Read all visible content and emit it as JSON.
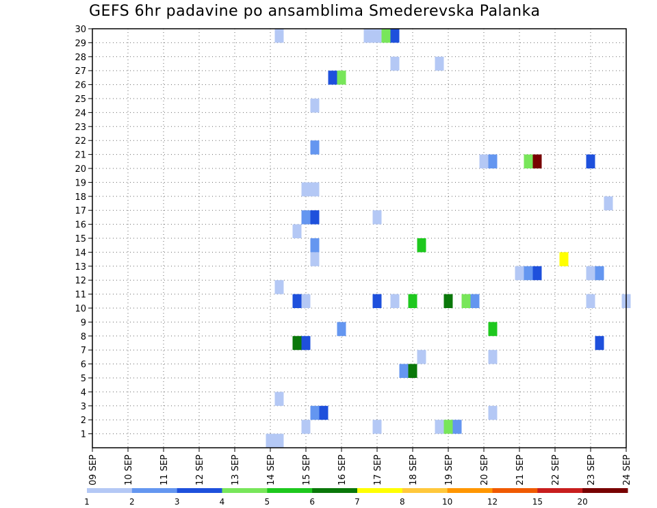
{
  "chart_data": {
    "type": "heatmap",
    "title": "GEFS 6hr padavine po ansamblima Smederevska Palanka",
    "xlabel": "",
    "ylabel": "",
    "x_ticks": [
      "09 SEP",
      "10 SEP",
      "11 SEP",
      "12 SEP",
      "13 SEP",
      "14 SEP",
      "15 SEP",
      "16 SEP",
      "17 SEP",
      "18 SEP",
      "19 SEP",
      "20 SEP",
      "21 SEP",
      "22 SEP",
      "23 SEP",
      "24 SEP"
    ],
    "y_ticks": [
      1,
      2,
      3,
      4,
      5,
      6,
      7,
      8,
      9,
      10,
      11,
      12,
      13,
      14,
      15,
      16,
      17,
      18,
      19,
      20,
      21,
      22,
      23,
      24,
      25,
      26,
      27,
      28,
      29,
      30
    ],
    "x_unit": "6-hour steps from 09 SEP 00",
    "xlim": [
      0,
      60
    ],
    "ylim": [
      0,
      30
    ],
    "grid": true,
    "legend": {
      "placement": "bottom",
      "labels": [
        "1",
        "2",
        "3",
        "4",
        "5",
        "6",
        "7",
        "8",
        "10",
        "12",
        "15",
        "20"
      ],
      "colors": [
        "#b4c8f5",
        "#6496f0",
        "#1e50dc",
        "#78e65a",
        "#1ec81e",
        "#0a780a",
        "#ffff00",
        "#ffc83c",
        "#ff9600",
        "#f05a00",
        "#c81e1e",
        "#780000"
      ]
    },
    "points": [
      {
        "x": 20,
        "y": 0,
        "c": "#b4c8f5"
      },
      {
        "x": 21,
        "y": 0,
        "c": "#b4c8f5"
      },
      {
        "x": 24,
        "y": 1,
        "c": "#b4c8f5"
      },
      {
        "x": 32,
        "y": 1,
        "c": "#b4c8f5"
      },
      {
        "x": 39,
        "y": 1,
        "c": "#b4c8f5"
      },
      {
        "x": 40,
        "y": 1,
        "c": "#78e65a"
      },
      {
        "x": 41,
        "y": 1,
        "c": "#6496f0"
      },
      {
        "x": 25,
        "y": 2,
        "c": "#6496f0"
      },
      {
        "x": 26,
        "y": 2,
        "c": "#1e50dc"
      },
      {
        "x": 45,
        "y": 2,
        "c": "#b4c8f5"
      },
      {
        "x": 21,
        "y": 3,
        "c": "#b4c8f5"
      },
      {
        "x": 35,
        "y": 5,
        "c": "#6496f0"
      },
      {
        "x": 36,
        "y": 5,
        "c": "#0a780a"
      },
      {
        "x": 37,
        "y": 6,
        "c": "#b4c8f5"
      },
      {
        "x": 45,
        "y": 6,
        "c": "#b4c8f5"
      },
      {
        "x": 23,
        "y": 7,
        "c": "#0a780a"
      },
      {
        "x": 24,
        "y": 7,
        "c": "#1e50dc"
      },
      {
        "x": 57,
        "y": 7,
        "c": "#1e50dc"
      },
      {
        "x": 28,
        "y": 8,
        "c": "#6496f0"
      },
      {
        "x": 45,
        "y": 8,
        "c": "#1ec81e"
      },
      {
        "x": 23,
        "y": 10,
        "c": "#1e50dc"
      },
      {
        "x": 24,
        "y": 10,
        "c": "#b4c8f5"
      },
      {
        "x": 32,
        "y": 10,
        "c": "#1e50dc"
      },
      {
        "x": 34,
        "y": 10,
        "c": "#b4c8f5"
      },
      {
        "x": 36,
        "y": 10,
        "c": "#1ec81e"
      },
      {
        "x": 40,
        "y": 10,
        "c": "#0a780a"
      },
      {
        "x": 42,
        "y": 10,
        "c": "#78e65a"
      },
      {
        "x": 43,
        "y": 10,
        "c": "#6496f0"
      },
      {
        "x": 56,
        "y": 10,
        "c": "#b4c8f5"
      },
      {
        "x": 60,
        "y": 10,
        "c": "#b4c8f5"
      },
      {
        "x": 21,
        "y": 11,
        "c": "#b4c8f5"
      },
      {
        "x": 48,
        "y": 12,
        "c": "#b4c8f5"
      },
      {
        "x": 49,
        "y": 12,
        "c": "#6496f0"
      },
      {
        "x": 50,
        "y": 12,
        "c": "#1e50dc"
      },
      {
        "x": 56,
        "y": 12,
        "c": "#b4c8f5"
      },
      {
        "x": 57,
        "y": 12,
        "c": "#6496f0"
      },
      {
        "x": 25,
        "y": 13,
        "c": "#b4c8f5"
      },
      {
        "x": 53,
        "y": 13,
        "c": "#ffff00"
      },
      {
        "x": 25,
        "y": 14,
        "c": "#6496f0"
      },
      {
        "x": 37,
        "y": 14,
        "c": "#1ec81e"
      },
      {
        "x": 23,
        "y": 15,
        "c": "#b4c8f5"
      },
      {
        "x": 24,
        "y": 16,
        "c": "#6496f0"
      },
      {
        "x": 25,
        "y": 16,
        "c": "#1e50dc"
      },
      {
        "x": 32,
        "y": 16,
        "c": "#b4c8f5"
      },
      {
        "x": 58,
        "y": 17,
        "c": "#b4c8f5"
      },
      {
        "x": 24,
        "y": 18,
        "c": "#b4c8f5"
      },
      {
        "x": 25,
        "y": 18,
        "c": "#b4c8f5"
      },
      {
        "x": 44,
        "y": 20,
        "c": "#b4c8f5"
      },
      {
        "x": 45,
        "y": 20,
        "c": "#6496f0"
      },
      {
        "x": 49,
        "y": 20,
        "c": "#78e65a"
      },
      {
        "x": 50,
        "y": 20,
        "c": "#780000"
      },
      {
        "x": 56,
        "y": 20,
        "c": "#1e50dc"
      },
      {
        "x": 25,
        "y": 21,
        "c": "#6496f0"
      },
      {
        "x": 25,
        "y": 24,
        "c": "#b4c8f5"
      },
      {
        "x": 27,
        "y": 26,
        "c": "#1e50dc"
      },
      {
        "x": 28,
        "y": 26,
        "c": "#78e65a"
      },
      {
        "x": 34,
        "y": 27,
        "c": "#b4c8f5"
      },
      {
        "x": 39,
        "y": 27,
        "c": "#b4c8f5"
      },
      {
        "x": 21,
        "y": 29,
        "c": "#b4c8f5"
      },
      {
        "x": 31,
        "y": 29,
        "c": "#b4c8f5"
      },
      {
        "x": 32,
        "y": 29,
        "c": "#b4c8f5"
      },
      {
        "x": 33,
        "y": 29,
        "c": "#78e65a"
      },
      {
        "x": 34,
        "y": 29,
        "c": "#1e50dc"
      }
    ]
  }
}
